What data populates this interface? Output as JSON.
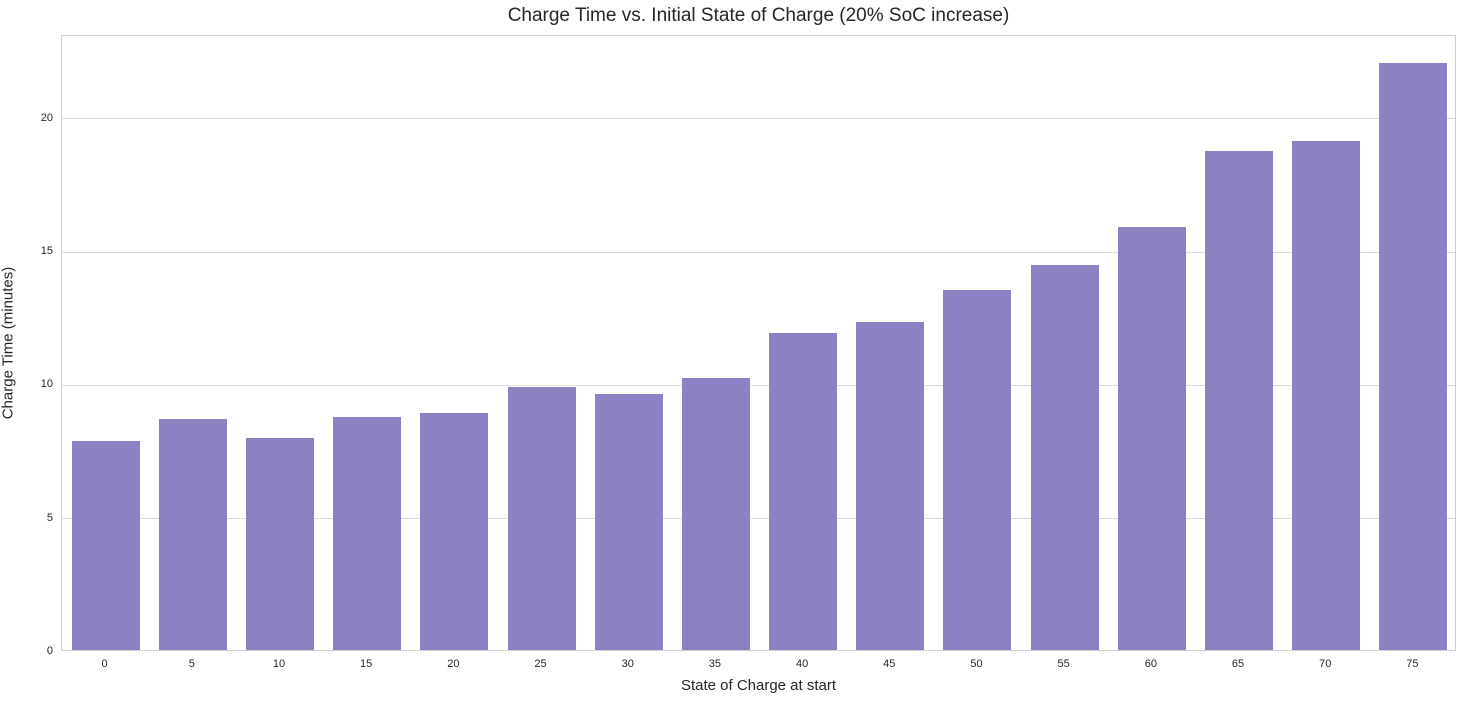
{
  "figure": {
    "background": "#ffffff"
  },
  "chart_data": {
    "type": "bar",
    "title": "Charge Time vs. Initial State of Charge (20% SoC increase)",
    "xlabel": "State of Charge at start",
    "ylabel": "Charge Time (minutes)",
    "categories": [
      "0",
      "5",
      "10",
      "15",
      "20",
      "25",
      "30",
      "35",
      "40",
      "45",
      "50",
      "55",
      "60",
      "65",
      "70",
      "75"
    ],
    "values": [
      7.85,
      8.65,
      7.95,
      8.75,
      8.9,
      9.85,
      9.6,
      10.2,
      11.9,
      12.3,
      13.5,
      14.45,
      15.85,
      18.7,
      19.1,
      22.0
    ],
    "yticks": [
      0,
      5,
      10,
      15,
      20
    ],
    "ylim": [
      0,
      23.1
    ],
    "grid": true,
    "legend": null,
    "colors": {
      "bar": "#8b82c4",
      "grid": "#dcdcdc",
      "spine": "#cfcfcf",
      "text": "#262626",
      "background": "#ffffff"
    }
  }
}
